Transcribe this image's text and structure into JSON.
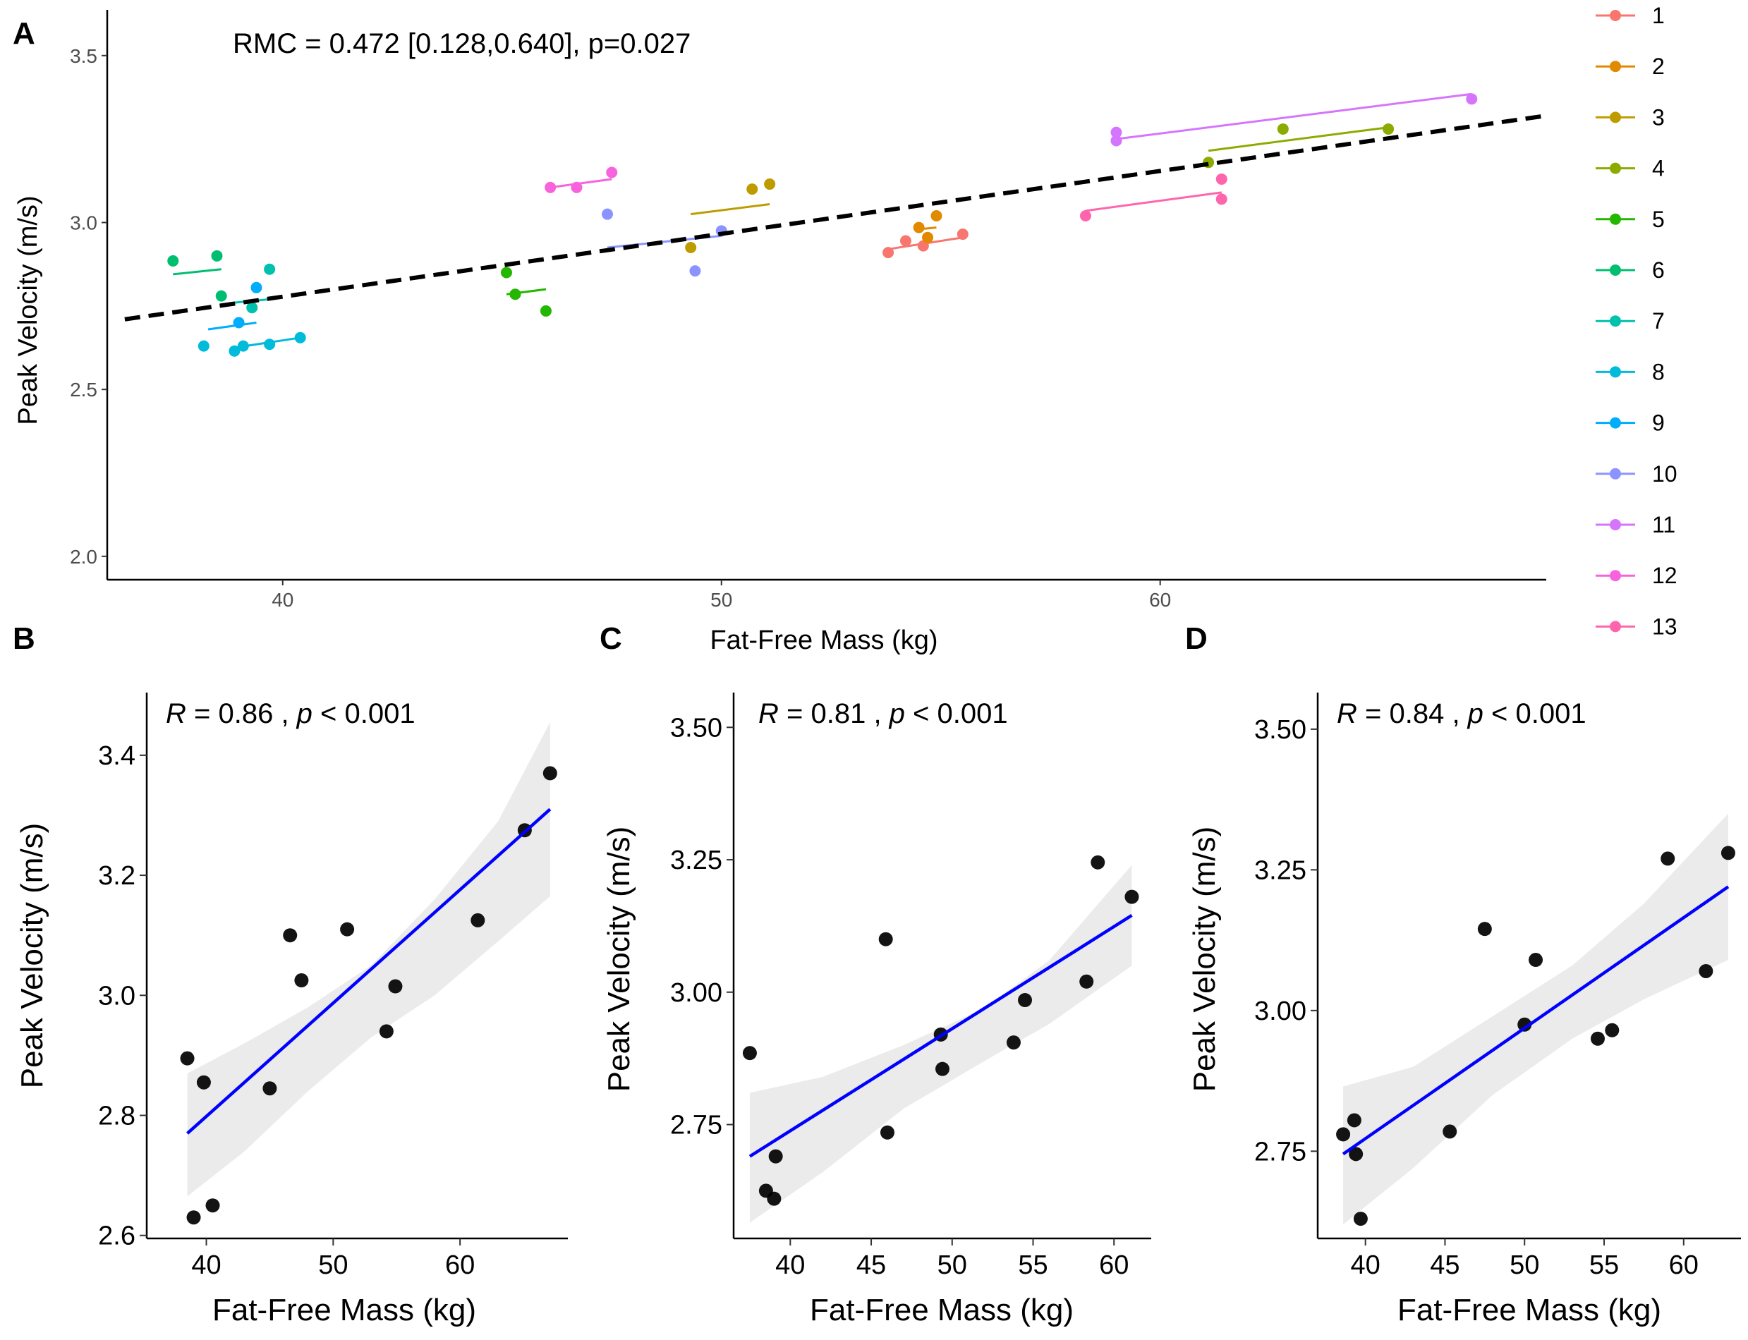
{
  "chart_data": [
    {
      "panel": "A",
      "type": "scatter",
      "annotation": "RMC = 0.472 [0.128,0.640], p=0.027",
      "xlabel": "Fat-Free Mass (kg)",
      "ylabel": "Peak Velocity (m/s)",
      "xlim": [
        36.0,
        68.8
      ],
      "ylim": [
        1.93,
        3.62
      ],
      "xticks": [
        40,
        50,
        60
      ],
      "yticks": [
        2.0,
        2.5,
        3.0,
        3.5
      ],
      "ytick_labels": [
        "2.0",
        "2.5",
        "3.0",
        "3.5"
      ],
      "grid": false,
      "legend_position": "right",
      "overall_fit": {
        "x": [
          36.4,
          68.8
        ],
        "y": [
          2.71,
          3.32
        ],
        "style": "dashed",
        "color": "#000000"
      },
      "series": [
        {
          "name": "1",
          "color": "#F8766D",
          "x": [
            53.8,
            54.2,
            54.6,
            55.5
          ],
          "y": [
            2.91,
            2.945,
            2.93,
            2.965
          ],
          "fit": [
            [
              53.8,
              2.92
            ],
            [
              55.5,
              2.955
            ]
          ]
        },
        {
          "name": "2",
          "color": "#E18A00",
          "x": [
            54.5,
            54.9,
            54.7
          ],
          "y": [
            2.985,
            3.02,
            2.955
          ],
          "fit": [
            [
              54.5,
              2.98
            ],
            [
              54.9,
              2.985
            ]
          ]
        },
        {
          "name": "3",
          "color": "#BE9C00",
          "x": [
            49.3,
            50.7,
            51.1
          ],
          "y": [
            2.925,
            3.1,
            3.115
          ],
          "fit": [
            [
              49.3,
              3.025
            ],
            [
              51.1,
              3.055
            ]
          ]
        },
        {
          "name": "4",
          "color": "#8CAB00",
          "x": [
            61.1,
            62.8,
            65.2
          ],
          "y": [
            3.18,
            3.28,
            3.28
          ],
          "fit": [
            [
              61.1,
              3.215
            ],
            [
              65.2,
              3.285
            ]
          ]
        },
        {
          "name": "5",
          "color": "#24B700",
          "x": [
            45.1,
            45.3,
            46.0
          ],
          "y": [
            2.85,
            2.785,
            2.735
          ],
          "fit": [
            [
              45.1,
              2.785
            ],
            [
              46.0,
              2.8
            ]
          ]
        },
        {
          "name": "6",
          "color": "#00BE70",
          "x": [
            37.5,
            38.5,
            38.6
          ],
          "y": [
            2.885,
            2.9,
            2.78
          ],
          "fit": [
            [
              37.5,
              2.845
            ],
            [
              38.6,
              2.86
            ]
          ]
        },
        {
          "name": "7",
          "color": "#00C1AB",
          "x": [
            39.3,
            39.7
          ],
          "y": [
            2.745,
            2.86
          ],
          "fit": [
            [
              38.9,
              2.76
            ],
            [
              39.7,
              2.77
            ]
          ]
        },
        {
          "name": "8",
          "color": "#00BBDA",
          "x": [
            38.2,
            38.9,
            39.1,
            39.7,
            40.4
          ],
          "y": [
            2.63,
            2.615,
            2.63,
            2.635,
            2.655
          ],
          "fit": [
            [
              38.9,
              2.625
            ],
            [
              40.4,
              2.655
            ]
          ]
        },
        {
          "name": "9",
          "color": "#00ACFC",
          "x": [
            39.0,
            39.4
          ],
          "y": [
            2.7,
            2.805
          ],
          "fit": [
            [
              38.3,
              2.68
            ],
            [
              39.4,
              2.7
            ]
          ]
        },
        {
          "name": "10",
          "color": "#8B93FF",
          "x": [
            47.4,
            49.4,
            50.0
          ],
          "y": [
            3.025,
            2.855,
            2.975
          ],
          "fit": [
            [
              47.4,
              2.925
            ],
            [
              50.0,
              2.96
            ]
          ]
        },
        {
          "name": "11",
          "color": "#D575FE",
          "x": [
            59.0,
            59.0,
            67.1
          ],
          "y": [
            3.27,
            3.245,
            3.37
          ],
          "fit": [
            [
              59.0,
              3.25
            ],
            [
              67.1,
              3.385
            ]
          ]
        },
        {
          "name": "12",
          "color": "#F962DD",
          "x": [
            46.1,
            46.7,
            47.5
          ],
          "y": [
            3.105,
            3.105,
            3.15
          ],
          "fit": [
            [
              46.1,
              3.105
            ],
            [
              47.5,
              3.13
            ]
          ]
        },
        {
          "name": "13",
          "color": "#FF65AC",
          "x": [
            58.3,
            61.4,
            61.4
          ],
          "y": [
            3.02,
            3.13,
            3.07
          ],
          "fit": [
            [
              58.3,
              3.035
            ],
            [
              61.4,
              3.09
            ]
          ]
        }
      ]
    },
    {
      "panel": "B",
      "type": "scatter",
      "annotation_r": "R",
      "annotation_r_value": " = 0.86 , ",
      "annotation_p": "p",
      "annotation_p_value": " < 0.001",
      "xlabel": "Fat-Free Mass (kg)",
      "ylabel": "Peak Velocity (m/s)",
      "xlim": [
        35.3,
        68.5
      ],
      "ylim": [
        2.595,
        3.495
      ],
      "xticks": [
        40,
        50,
        60
      ],
      "yticks": [
        2.6,
        2.8,
        3.0,
        3.2,
        3.4
      ],
      "ytick_labels": [
        "2.6",
        "2.8",
        "3.0",
        "3.2",
        "3.4"
      ],
      "x": [
        38.5,
        39.0,
        39.8,
        40.5,
        45.0,
        46.6,
        47.5,
        51.1,
        54.2,
        54.9,
        61.4,
        65.1,
        67.1
      ],
      "y": [
        2.895,
        2.63,
        2.855,
        2.65,
        2.845,
        3.1,
        3.025,
        3.11,
        2.94,
        3.015,
        3.125,
        3.275,
        3.37
      ],
      "fit": {
        "x": [
          38.5,
          67.1
        ],
        "y": [
          2.77,
          3.31
        ],
        "color": "#0000FF"
      },
      "ci_upper": [
        2.87,
        2.92,
        2.98,
        3.05,
        3.16,
        3.29,
        3.455
      ],
      "ci_lower": [
        2.665,
        2.74,
        2.84,
        2.93,
        3.0,
        3.09,
        3.165
      ],
      "ci_x": [
        38.5,
        43.0,
        48.0,
        53.0,
        58.0,
        63.0,
        67.1
      ]
    },
    {
      "panel": "C",
      "type": "scatter",
      "annotation_r": "R",
      "annotation_r_value": " = 0.81 , ",
      "annotation_p": "p",
      "annotation_p_value": " < 0.001",
      "xlabel": "Fat-Free Mass (kg)",
      "ylabel": "Peak Velocity (m/s)",
      "xlim": [
        36.5,
        62.3
      ],
      "ylim": [
        2.535,
        3.555
      ],
      "xticks": [
        40,
        45,
        50,
        55,
        60
      ],
      "yticks": [
        2.75,
        3.0,
        3.25,
        3.5
      ],
      "ytick_labels": [
        "2.75",
        "3.00",
        "3.25",
        "3.50"
      ],
      "x": [
        37.5,
        38.5,
        39.0,
        39.1,
        45.9,
        46.0,
        49.3,
        49.4,
        53.8,
        54.5,
        58.3,
        59.0,
        61.1
      ],
      "y": [
        2.885,
        2.625,
        2.61,
        2.69,
        3.1,
        2.735,
        2.92,
        2.855,
        2.905,
        2.985,
        3.02,
        3.245,
        3.18
      ],
      "fit": {
        "x": [
          37.5,
          61.1
        ],
        "y": [
          2.69,
          3.145
        ],
        "color": "#0000FF"
      },
      "ci_upper": [
        2.81,
        2.84,
        2.9,
        2.97,
        3.06,
        3.24
      ],
      "ci_lower": [
        2.565,
        2.66,
        2.78,
        2.87,
        2.94,
        3.05
      ],
      "ci_x": [
        37.5,
        42.0,
        47.0,
        52.0,
        56.0,
        61.1
      ]
    },
    {
      "panel": "D",
      "type": "scatter",
      "annotation_r": "R",
      "annotation_r_value": " = 0.84 , ",
      "annotation_p": "p",
      "annotation_p_value": " < 0.001",
      "xlabel": "Fat-Free Mass (kg)",
      "ylabel": "Peak Velocity (m/s)",
      "xlim": [
        37.0,
        63.6
      ],
      "ylim": [
        2.595,
        3.555
      ],
      "xticks": [
        40,
        45,
        50,
        55,
        60
      ],
      "yticks": [
        2.75,
        3.0,
        3.25,
        3.5
      ],
      "ytick_labels": [
        "2.75",
        "3.00",
        "3.25",
        "3.50"
      ],
      "x": [
        38.6,
        39.3,
        39.4,
        39.7,
        45.3,
        47.5,
        50.0,
        50.7,
        54.6,
        55.5,
        59.0,
        61.4,
        62.8
      ],
      "y": [
        2.78,
        2.805,
        2.745,
        2.63,
        2.785,
        3.145,
        2.975,
        3.09,
        2.95,
        2.965,
        3.27,
        3.07,
        3.28
      ],
      "fit": {
        "x": [
          38.6,
          62.8
        ],
        "y": [
          2.745,
          3.22
        ],
        "color": "#0000FF"
      },
      "ci_upper": [
        2.865,
        2.9,
        2.99,
        3.08,
        3.19,
        3.35
      ],
      "ci_lower": [
        2.62,
        2.72,
        2.85,
        2.95,
        3.02,
        3.09
      ],
      "ci_x": [
        38.6,
        43.0,
        48.0,
        53.0,
        57.5,
        62.8
      ]
    }
  ]
}
